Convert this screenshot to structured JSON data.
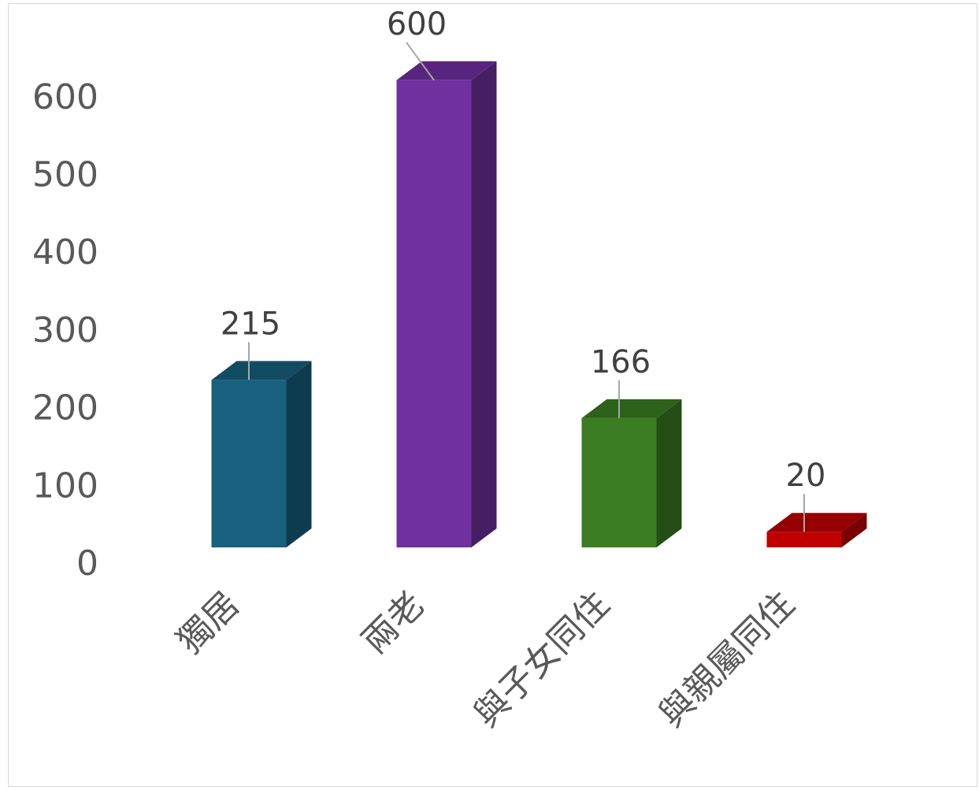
{
  "chart_data": {
    "type": "bar",
    "style": "3d-column",
    "categories": [
      "獨居",
      "兩老",
      "與子女同住",
      "與親屬同住"
    ],
    "values": [
      215,
      600,
      166,
      20
    ],
    "colors": [
      "#17617f",
      "#7030a0",
      "#3a7d22",
      "#c00000"
    ],
    "title": "",
    "xlabel": "",
    "ylabel": "",
    "ylim": [
      0,
      600
    ],
    "yticks": [
      "0",
      "100",
      "200",
      "300",
      "400",
      "500",
      "600"
    ],
    "data_labels": [
      "215",
      "600",
      "166",
      "20"
    ],
    "grid": false,
    "legend": "none"
  }
}
